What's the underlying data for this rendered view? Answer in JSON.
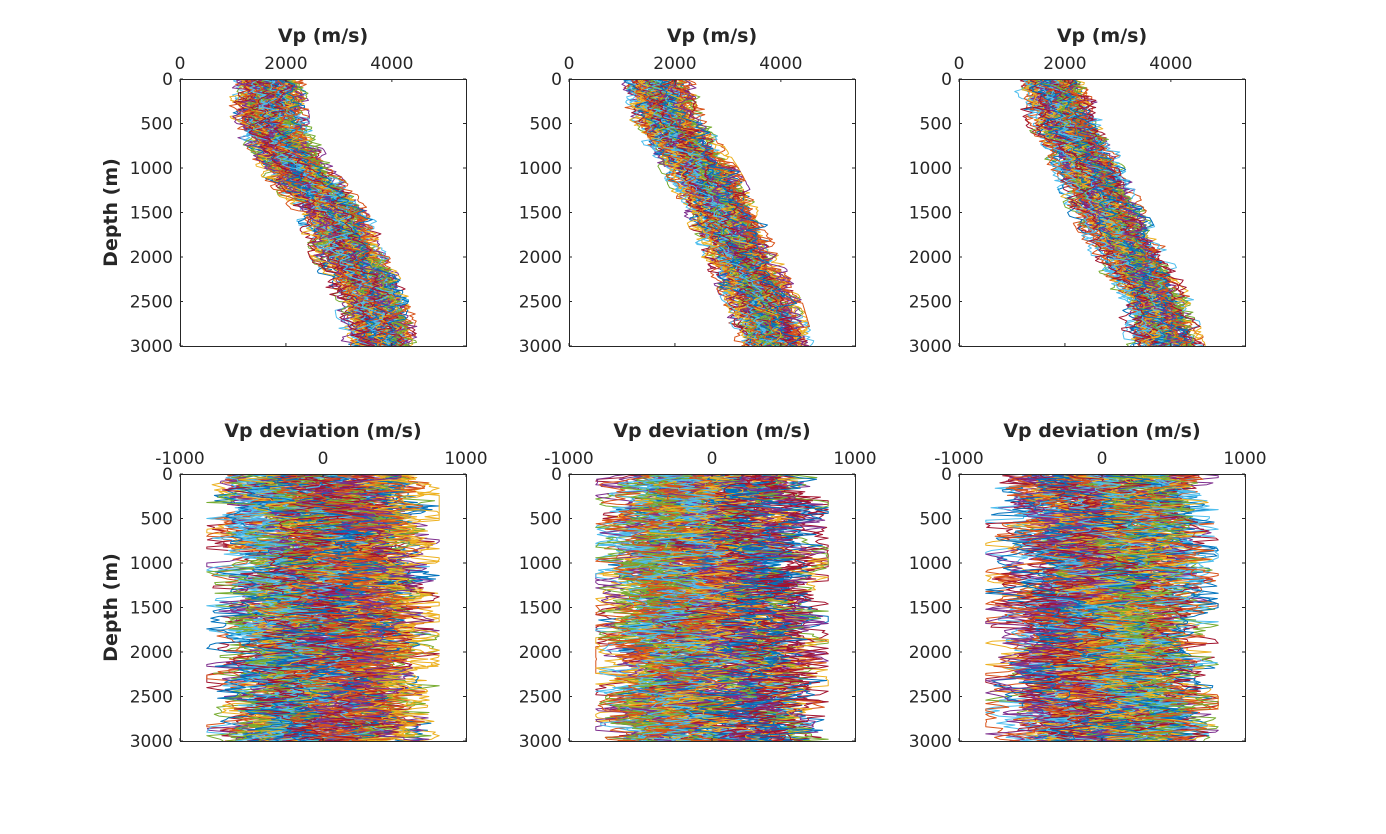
{
  "figure": {
    "colors": [
      "#0072bd",
      "#d95319",
      "#edb120",
      "#7e2f8e",
      "#77ac30",
      "#4dbeee",
      "#a2142f"
    ]
  },
  "chart_data": [
    {
      "type": "line",
      "orientation": "depth-profile",
      "row": 1,
      "col": 1,
      "xlabel": "Vp (m/s)",
      "ylabel": "Depth (m)",
      "xlim": [
        0,
        5400
      ],
      "ylim": [
        0,
        3000
      ],
      "yreversed": true,
      "xaxis_location": "top",
      "xticks": [
        "0",
        "2000",
        "4000"
      ],
      "yticks": [
        "0",
        "500",
        "1000",
        "1500",
        "2000",
        "2500",
        "3000"
      ],
      "trend": {
        "depth": [
          0,
          500,
          1000,
          1500,
          2000,
          2500,
          3000
        ],
        "vp_mean": [
          1650,
          1700,
          2150,
          2900,
          3200,
          3650,
          3800
        ]
      },
      "spread_halfwidth": 600,
      "n_traces": 100
    },
    {
      "type": "line",
      "orientation": "depth-profile",
      "row": 1,
      "col": 2,
      "xlabel": "Vp (m/s)",
      "ylabel": "",
      "xlim": [
        0,
        5400
      ],
      "ylim": [
        0,
        3000
      ],
      "yreversed": true,
      "xaxis_location": "top",
      "xticks": [
        "0",
        "2000",
        "4000"
      ],
      "yticks": [
        "0",
        "500",
        "1000",
        "1500",
        "2000",
        "2500",
        "3000"
      ],
      "trend": {
        "depth": [
          0,
          500,
          1000,
          1500,
          2000,
          2500,
          3000
        ],
        "vp_mean": [
          1650,
          1900,
          2450,
          2900,
          3250,
          3650,
          3900
        ]
      },
      "spread_halfwidth": 600,
      "n_traces": 100
    },
    {
      "type": "line",
      "orientation": "depth-profile",
      "row": 1,
      "col": 3,
      "xlabel": "Vp (m/s)",
      "ylabel": "",
      "xlim": [
        0,
        5400
      ],
      "ylim": [
        0,
        3000
      ],
      "yreversed": true,
      "xaxis_location": "top",
      "xticks": [
        "0",
        "2000",
        "4000"
      ],
      "yticks": [
        "0",
        "500",
        "1000",
        "1500",
        "2000",
        "2500",
        "3000"
      ],
      "trend": {
        "depth": [
          0,
          500,
          1000,
          1500,
          2000,
          2500,
          3000
        ],
        "vp_mean": [
          1700,
          2000,
          2450,
          2800,
          3250,
          3700,
          3900
        ]
      },
      "spread_halfwidth": 600,
      "n_traces": 100
    },
    {
      "type": "line",
      "orientation": "depth-profile",
      "row": 2,
      "col": 1,
      "xlabel": "Vp deviation (m/s)",
      "ylabel": "Depth (m)",
      "xlim": [
        -1000,
        1000
      ],
      "ylim": [
        0,
        3000
      ],
      "yreversed": true,
      "xaxis_location": "top",
      "xticks": [
        "-1000",
        "0",
        "1000"
      ],
      "yticks": [
        "0",
        "500",
        "1000",
        "1500",
        "2000",
        "2500",
        "3000"
      ],
      "trend": {
        "depth": [
          0,
          3000
        ],
        "vp_mean": [
          0,
          0
        ]
      },
      "spread_halfwidth": 650,
      "n_traces": 100
    },
    {
      "type": "line",
      "orientation": "depth-profile",
      "row": 2,
      "col": 2,
      "xlabel": "Vp deviation (m/s)",
      "ylabel": "",
      "xlim": [
        -1000,
        1000
      ],
      "ylim": [
        0,
        3000
      ],
      "yreversed": true,
      "xaxis_location": "top",
      "xticks": [
        "-1000",
        "0",
        "1000"
      ],
      "yticks": [
        "0",
        "500",
        "1000",
        "1500",
        "2000",
        "2500",
        "3000"
      ],
      "trend": {
        "depth": [
          0,
          3000
        ],
        "vp_mean": [
          0,
          0
        ]
      },
      "spread_halfwidth": 650,
      "n_traces": 100
    },
    {
      "type": "line",
      "orientation": "depth-profile",
      "row": 2,
      "col": 3,
      "xlabel": "Vp deviation (m/s)",
      "ylabel": "",
      "xlim": [
        -1000,
        1000
      ],
      "ylim": [
        0,
        3000
      ],
      "yreversed": true,
      "xaxis_location": "top",
      "xticks": [
        "-1000",
        "0",
        "1000"
      ],
      "yticks": [
        "0",
        "500",
        "1000",
        "1500",
        "2000",
        "2500",
        "3000"
      ],
      "trend": {
        "depth": [
          0,
          3000
        ],
        "vp_mean": [
          0,
          0
        ]
      },
      "spread_halfwidth": 650,
      "n_traces": 100
    }
  ]
}
